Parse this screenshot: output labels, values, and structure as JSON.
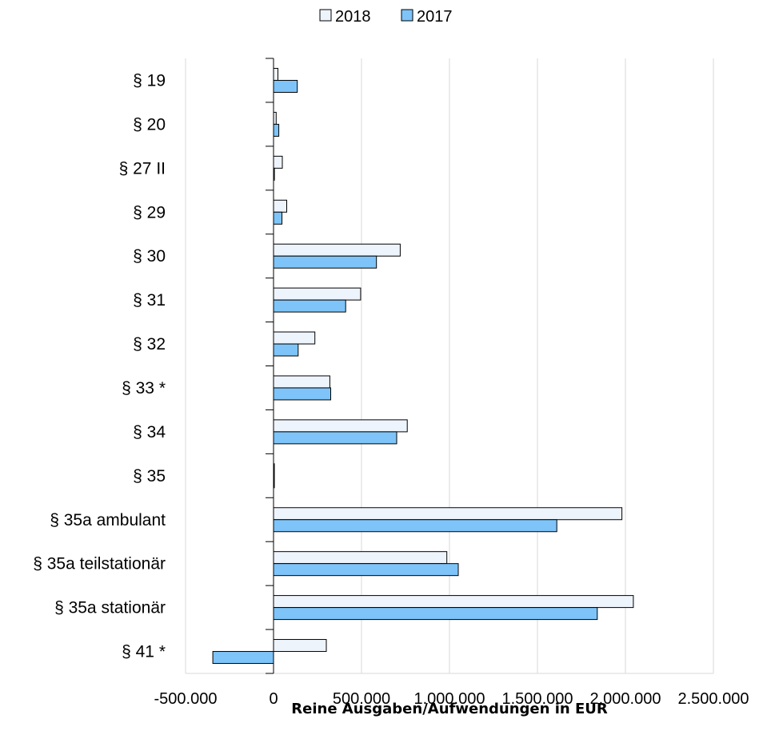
{
  "chart_data": {
    "type": "bar",
    "orientation": "horizontal",
    "categories": [
      "§ 19",
      "§ 20",
      "§ 27 II",
      "§ 29",
      "§ 30",
      "§ 31",
      "§ 32",
      "§ 33 *",
      "§ 34",
      "§ 35",
      "§ 35a ambulant",
      "§ 35a teilstationär",
      "§ 35a stationär",
      "§ 41 *"
    ],
    "series": [
      {
        "name": "2018",
        "color": "#eef4fb",
        "values": [
          25000,
          15000,
          50000,
          75000,
          720000,
          495000,
          235000,
          320000,
          760000,
          2000,
          1980000,
          985000,
          2045000,
          300000
        ]
      },
      {
        "name": "2017",
        "color": "#7ec4f8",
        "values": [
          135000,
          30000,
          5000,
          48000,
          585000,
          410000,
          140000,
          325000,
          700000,
          2000,
          1610000,
          1050000,
          1840000,
          -345000
        ]
      }
    ],
    "xlabel": "Reine Ausgaben/Aufwendungen in EUR",
    "ylabel": "",
    "title": "",
    "xlim": [
      -500000,
      2500000
    ],
    "xticks": [
      -500000,
      0,
      500000,
      1000000,
      1500000,
      2000000,
      2500000
    ],
    "xtick_labels": [
      "-500.000",
      "0",
      "500.000",
      "1.000.000",
      "1.500.000",
      "2.000.000",
      "2.500.000"
    ],
    "grid": "vertical",
    "legend_position": "top-center"
  }
}
